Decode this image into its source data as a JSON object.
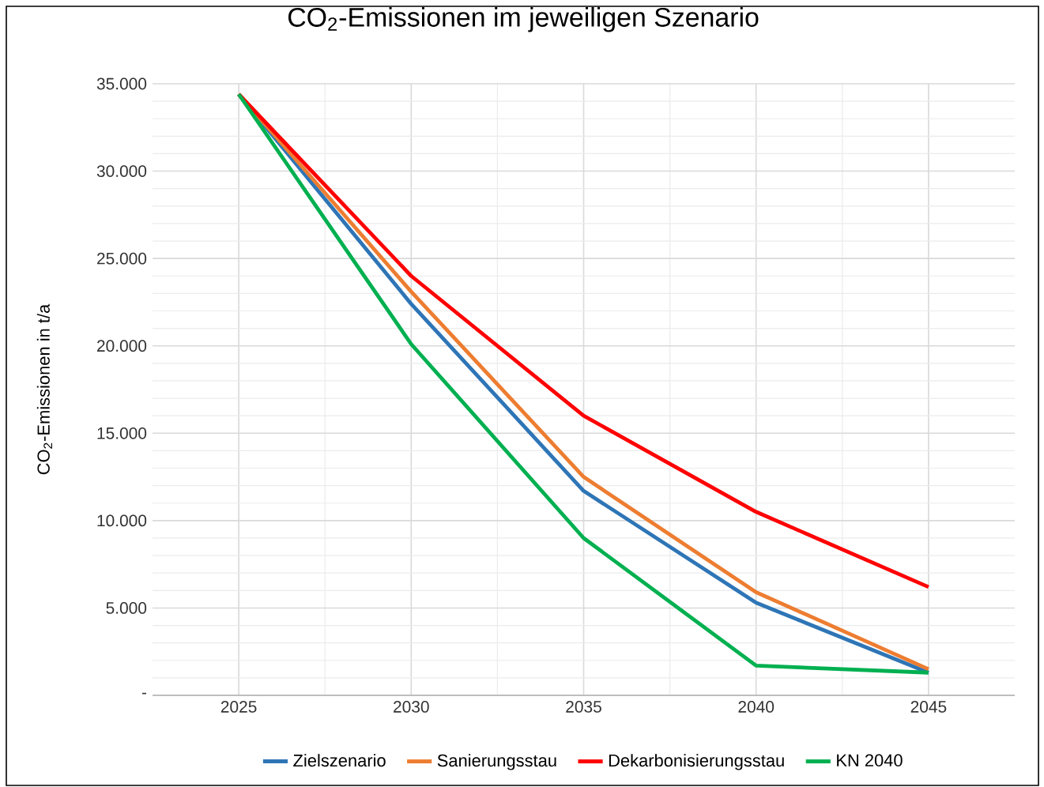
{
  "chart_data": {
    "type": "line",
    "title": "CO$_{2}$-Emissionen im jeweiligen Szenario",
    "ylabel": "CO$_{2}$-Emissionen in t/a",
    "x": [
      2025,
      2030,
      2035,
      2040,
      2045
    ],
    "series": [
      {
        "name": "Zielszenario",
        "color": "#2e75b6",
        "values": [
          34400,
          22400,
          11700,
          5300,
          1300
        ]
      },
      {
        "name": "Sanierungsstau",
        "color": "#ed7d31",
        "values": [
          34400,
          23100,
          12500,
          5900,
          1500
        ]
      },
      {
        "name": "Dekarbonisierungsstau",
        "color": "#ff0000",
        "values": [
          34400,
          24000,
          16000,
          10500,
          6200
        ]
      },
      {
        "name": "KN 2040",
        "color": "#00b050",
        "values": [
          34400,
          20100,
          9000,
          1700,
          1300
        ]
      }
    ],
    "xlim": [
      2022.5,
      2047.5
    ],
    "xticks": [
      2025,
      2030,
      2035,
      2040,
      2045
    ],
    "ylim": [
      0,
      35000
    ],
    "yticks": [
      {
        "value": 0,
        "label": "-"
      },
      {
        "value": 5000,
        "label": "5.000"
      },
      {
        "value": 10000,
        "label": "10.000"
      },
      {
        "value": 15000,
        "label": "15.000"
      },
      {
        "value": 20000,
        "label": "20.000"
      },
      {
        "value": 25000,
        "label": "25.000"
      },
      {
        "value": 30000,
        "label": "30.000"
      },
      {
        "value": 35000,
        "label": "35.000"
      }
    ],
    "grid": true,
    "legend": "bottom",
    "marker": "none",
    "line_style": "solid"
  }
}
